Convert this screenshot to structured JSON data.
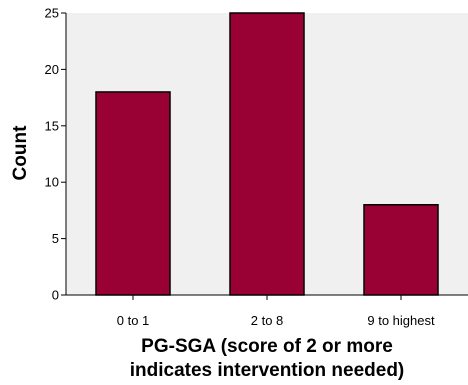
{
  "chart_data": {
    "type": "bar",
    "categories": [
      "0 to 1",
      "2 to 8",
      "9 to highest"
    ],
    "values": [
      18,
      25,
      8
    ],
    "xlabel_lines": [
      "PG-SGA (score of 2 or more",
      "indicates intervention needed)"
    ],
    "ylabel": "Count",
    "ylim": [
      0,
      25
    ],
    "yticks": [
      0,
      5,
      10,
      15,
      20,
      25
    ],
    "grid": false,
    "legend": "none"
  },
  "colors": {
    "bar_fill": "#990033",
    "bar_stroke": "#000000",
    "plot_background": "#f0f0f0",
    "axis": "#000000"
  }
}
